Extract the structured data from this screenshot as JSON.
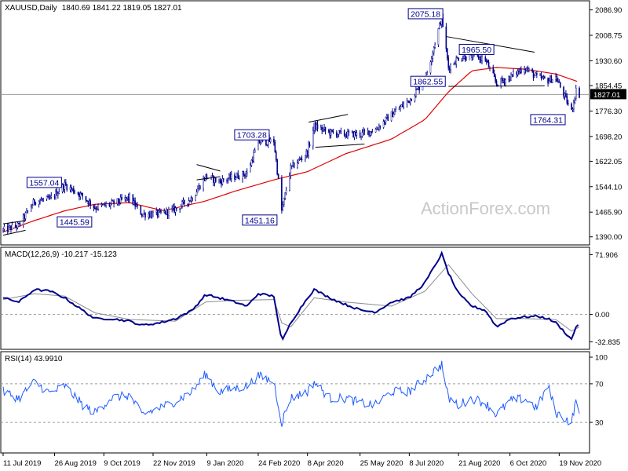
{
  "header": {
    "symbol": "XAUUSD,Daily",
    "ohlc": "1840.69 1841.22 1819.05 1827.01",
    "macd_title": "MACD(12,26,9) -10.217 -15.123",
    "rsi_title": "RSI(14) 43.9910"
  },
  "watermark": "ActionForex.com",
  "colors": {
    "candle": "#00008b",
    "sma": "#e00000",
    "macd_line": "#00008b",
    "macd_signal": "#8c8c8c",
    "rsi_line": "#1e5bff",
    "trendline": "#000000",
    "grid_ref": "#9a9a9a"
  },
  "chart_data": [
    {
      "type": "candlestick",
      "panel": "price",
      "ylim": [
        1370,
        2110
      ],
      "y_ticks": [
        "2086.90",
        "2008.75",
        "1930.60",
        "1854.45",
        "1776.30",
        "1698.20",
        "1622.05",
        "1544.10",
        "1465.90",
        "1390.00"
      ],
      "current_price": "1827.01",
      "annotations": [
        {
          "label": "2075.18",
          "date": "2020-08-07",
          "value": 2075.18
        },
        {
          "label": "1965.50",
          "date": "2020-09-23",
          "value": 1965.5
        },
        {
          "label": "1862.55",
          "date": "2020-08-12",
          "value": 1862.55
        },
        {
          "label": "1764.31",
          "date": "2020-11-30",
          "value": 1764.31
        },
        {
          "label": "1703.28",
          "date": "2020-03-09",
          "value": 1703.28
        },
        {
          "label": "1557.04",
          "date": "2019-09-04",
          "value": 1557.04
        },
        {
          "label": "1445.59",
          "date": "2019-10-01",
          "value": 1445.59
        },
        {
          "label": "1451.16",
          "date": "2020-03-16",
          "value": 1451.16
        }
      ],
      "x_labels": [
        "11 Jul 2019",
        "26 Aug 2019",
        "9 Oct 2019",
        "22 Nov 2019",
        "9 Jan 2020",
        "24 Feb 2020",
        "8 Apr 2020",
        "25 May 2020",
        "8 Jul 2020",
        "21 Aug 2020",
        "6 Oct 2020",
        "19 Nov 2020"
      ],
      "approx_close_path": [
        [
          "2019-07-11",
          1410
        ],
        [
          "2019-07-25",
          1425
        ],
        [
          "2019-08-08",
          1500
        ],
        [
          "2019-08-22",
          1505
        ],
        [
          "2019-09-04",
          1550
        ],
        [
          "2019-09-20",
          1515
        ],
        [
          "2019-10-01",
          1480
        ],
        [
          "2019-10-15",
          1490
        ],
        [
          "2019-11-01",
          1510
        ],
        [
          "2019-11-12",
          1460
        ],
        [
          "2019-11-28",
          1460
        ],
        [
          "2019-12-12",
          1475
        ],
        [
          "2019-12-27",
          1510
        ],
        [
          "2020-01-08",
          1575
        ],
        [
          "2020-01-20",
          1560
        ],
        [
          "2020-02-03",
          1575
        ],
        [
          "2020-02-14",
          1585
        ],
        [
          "2020-02-24",
          1680
        ],
        [
          "2020-03-09",
          1685
        ],
        [
          "2020-03-16",
          1470
        ],
        [
          "2020-03-24",
          1600
        ],
        [
          "2020-04-08",
          1650
        ],
        [
          "2020-04-14",
          1730
        ],
        [
          "2020-04-28",
          1710
        ],
        [
          "2020-05-12",
          1705
        ],
        [
          "2020-05-26",
          1705
        ],
        [
          "2020-06-08",
          1720
        ],
        [
          "2020-06-22",
          1765
        ],
        [
          "2020-07-08",
          1810
        ],
        [
          "2020-07-22",
          1870
        ],
        [
          "2020-08-06",
          2065
        ],
        [
          "2020-08-12",
          1910
        ],
        [
          "2020-08-21",
          1940
        ],
        [
          "2020-09-02",
          1945
        ],
        [
          "2020-09-14",
          1935
        ],
        [
          "2020-09-24",
          1860
        ],
        [
          "2020-10-06",
          1880
        ],
        [
          "2020-10-19",
          1910
        ],
        [
          "2020-10-30",
          1880
        ],
        [
          "2020-11-09",
          1870
        ],
        [
          "2020-11-16",
          1880
        ],
        [
          "2020-11-30",
          1775
        ],
        [
          "2020-12-04",
          1840
        ],
        [
          "2020-12-07",
          1827
        ]
      ],
      "sma_path": [
        [
          "2019-07-11",
          1405
        ],
        [
          "2019-08-08",
          1440
        ],
        [
          "2019-09-04",
          1470
        ],
        [
          "2019-10-01",
          1490
        ],
        [
          "2019-11-01",
          1495
        ],
        [
          "2019-12-01",
          1470
        ],
        [
          "2020-01-08",
          1500
        ],
        [
          "2020-02-03",
          1530
        ],
        [
          "2020-03-09",
          1565
        ],
        [
          "2020-04-08",
          1590
        ],
        [
          "2020-05-12",
          1645
        ],
        [
          "2020-06-22",
          1690
        ],
        [
          "2020-07-22",
          1750
        ],
        [
          "2020-08-12",
          1835
        ],
        [
          "2020-09-02",
          1900
        ],
        [
          "2020-09-24",
          1910
        ],
        [
          "2020-10-19",
          1905
        ],
        [
          "2020-11-16",
          1890
        ],
        [
          "2020-12-07",
          1865
        ]
      ]
    },
    {
      "type": "line",
      "panel": "macd",
      "name": "MACD(12,26,9)",
      "ylim": [
        -40,
        78
      ],
      "y_ticks": [
        "71.906",
        "0.00",
        "-32.835"
      ],
      "macd_values": [
        [
          "2019-07-11",
          20
        ],
        [
          "2019-07-25",
          15
        ],
        [
          "2019-08-08",
          30
        ],
        [
          "2019-08-22",
          28
        ],
        [
          "2019-09-04",
          20
        ],
        [
          "2019-09-20",
          5
        ],
        [
          "2019-10-01",
          -5
        ],
        [
          "2019-10-15",
          -5
        ],
        [
          "2019-11-01",
          -8
        ],
        [
          "2019-11-12",
          -13
        ],
        [
          "2019-11-28",
          -10
        ],
        [
          "2019-12-12",
          -5
        ],
        [
          "2019-12-27",
          5
        ],
        [
          "2020-01-08",
          24
        ],
        [
          "2020-01-20",
          20
        ],
        [
          "2020-02-03",
          15
        ],
        [
          "2020-02-14",
          10
        ],
        [
          "2020-02-24",
          25
        ],
        [
          "2020-03-09",
          22
        ],
        [
          "2020-03-16",
          -33
        ],
        [
          "2020-03-24",
          -10
        ],
        [
          "2020-04-08",
          20
        ],
        [
          "2020-04-14",
          30
        ],
        [
          "2020-04-28",
          20
        ],
        [
          "2020-05-12",
          12
        ],
        [
          "2020-05-26",
          5
        ],
        [
          "2020-06-08",
          3
        ],
        [
          "2020-06-22",
          15
        ],
        [
          "2020-07-08",
          20
        ],
        [
          "2020-07-22",
          38
        ],
        [
          "2020-08-06",
          73
        ],
        [
          "2020-08-12",
          50
        ],
        [
          "2020-08-21",
          25
        ],
        [
          "2020-09-02",
          10
        ],
        [
          "2020-09-14",
          5
        ],
        [
          "2020-09-24",
          -15
        ],
        [
          "2020-10-06",
          -5
        ],
        [
          "2020-10-19",
          -3
        ],
        [
          "2020-10-30",
          -2
        ],
        [
          "2020-11-09",
          -5
        ],
        [
          "2020-11-16",
          -10
        ],
        [
          "2020-11-30",
          -30
        ],
        [
          "2020-12-04",
          -15
        ],
        [
          "2020-12-07",
          -10
        ]
      ],
      "signal_values": [
        [
          "2019-07-11",
          18
        ],
        [
          "2019-08-08",
          25
        ],
        [
          "2019-09-04",
          22
        ],
        [
          "2019-10-01",
          2
        ],
        [
          "2019-11-01",
          -6
        ],
        [
          "2019-12-12",
          -8
        ],
        [
          "2020-01-08",
          15
        ],
        [
          "2020-02-03",
          17
        ],
        [
          "2020-03-09",
          18
        ],
        [
          "2020-03-16",
          -10
        ],
        [
          "2020-03-24",
          -15
        ],
        [
          "2020-04-14",
          20
        ],
        [
          "2020-05-12",
          15
        ],
        [
          "2020-06-22",
          10
        ],
        [
          "2020-07-22",
          28
        ],
        [
          "2020-08-12",
          60
        ],
        [
          "2020-09-02",
          25
        ],
        [
          "2020-09-24",
          -5
        ],
        [
          "2020-10-19",
          -5
        ],
        [
          "2020-11-16",
          -6
        ],
        [
          "2020-11-30",
          -20
        ],
        [
          "2020-12-07",
          -15
        ]
      ]
    },
    {
      "type": "line",
      "panel": "rsi",
      "name": "RSI(14)",
      "ylim": [
        0,
        100
      ],
      "y_ticks": [
        "100",
        "70",
        "30"
      ],
      "values": [
        [
          "2019-07-11",
          62
        ],
        [
          "2019-07-25",
          55
        ],
        [
          "2019-08-08",
          72
        ],
        [
          "2019-08-22",
          60
        ],
        [
          "2019-09-04",
          68
        ],
        [
          "2019-09-20",
          48
        ],
        [
          "2019-10-01",
          40
        ],
        [
          "2019-10-15",
          55
        ],
        [
          "2019-11-01",
          58
        ],
        [
          "2019-11-12",
          38
        ],
        [
          "2019-11-28",
          45
        ],
        [
          "2019-12-12",
          52
        ],
        [
          "2019-12-27",
          62
        ],
        [
          "2020-01-08",
          80
        ],
        [
          "2020-01-20",
          62
        ],
        [
          "2020-02-03",
          65
        ],
        [
          "2020-02-14",
          68
        ],
        [
          "2020-02-24",
          78
        ],
        [
          "2020-03-09",
          72
        ],
        [
          "2020-03-16",
          30
        ],
        [
          "2020-03-24",
          55
        ],
        [
          "2020-04-08",
          62
        ],
        [
          "2020-04-14",
          72
        ],
        [
          "2020-04-28",
          55
        ],
        [
          "2020-05-12",
          55
        ],
        [
          "2020-05-26",
          50
        ],
        [
          "2020-06-08",
          48
        ],
        [
          "2020-06-22",
          62
        ],
        [
          "2020-07-08",
          62
        ],
        [
          "2020-07-22",
          75
        ],
        [
          "2020-08-06",
          90
        ],
        [
          "2020-08-12",
          55
        ],
        [
          "2020-08-21",
          48
        ],
        [
          "2020-09-02",
          55
        ],
        [
          "2020-09-14",
          50
        ],
        [
          "2020-09-24",
          38
        ],
        [
          "2020-10-06",
          52
        ],
        [
          "2020-10-19",
          55
        ],
        [
          "2020-10-30",
          45
        ],
        [
          "2020-11-09",
          68
        ],
        [
          "2020-11-16",
          40
        ],
        [
          "2020-11-30",
          30
        ],
        [
          "2020-12-04",
          52
        ],
        [
          "2020-12-07",
          44
        ]
      ]
    }
  ]
}
